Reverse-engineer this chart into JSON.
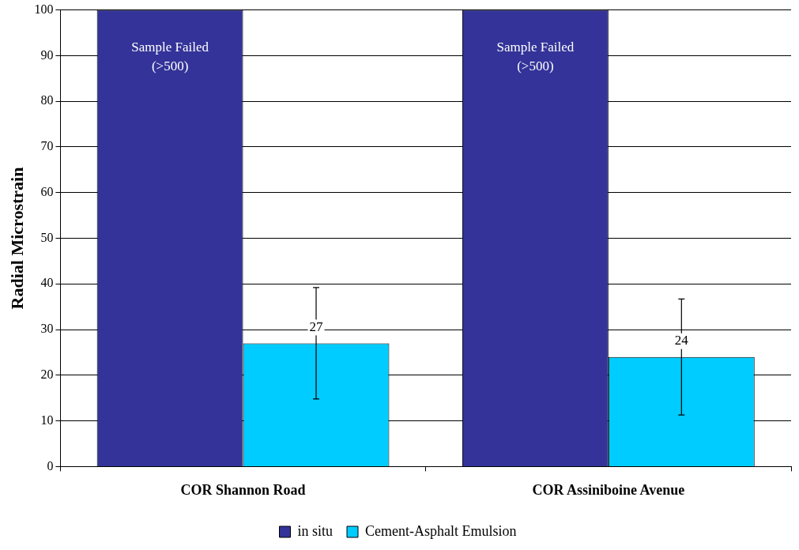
{
  "chart_data": {
    "type": "bar",
    "ylabel": "Radial Microstrain",
    "categories": [
      "COR Shannon Road",
      "COR Assiniboine Avenue"
    ],
    "series": [
      {
        "name": "in situ",
        "color": "#333399",
        "values": [
          100,
          100
        ],
        "value_labels": [
          "Sample Failed\n(>500)",
          "Sample Failed\n(>500)"
        ]
      },
      {
        "name": "Cement-Asphalt Emulsion",
        "color": "#00ccff",
        "values": [
          27,
          24
        ],
        "value_labels": [
          "27",
          "24"
        ],
        "errors": [
          [
            14.8,
            39.2
          ],
          [
            11.3,
            36.7
          ]
        ]
      }
    ],
    "ylim": [
      0,
      100
    ],
    "yticks": [
      0,
      10,
      20,
      30,
      40,
      50,
      60,
      70,
      80,
      90,
      100
    ],
    "grid": "y",
    "legend": "bottom"
  }
}
